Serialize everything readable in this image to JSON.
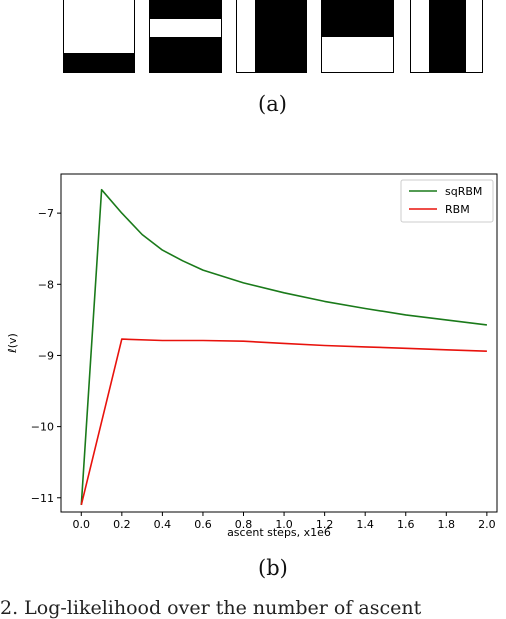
{
  "captions": {
    "a": "(a)",
    "b": "(b)"
  },
  "patterns": [
    {
      "name": "bottom-bar"
    },
    {
      "name": "top-and-middle-bars"
    },
    {
      "name": "right-block"
    },
    {
      "name": "top-block"
    },
    {
      "name": "center-vertical-bar"
    }
  ],
  "bottom_text": "2.  Log-likelihood over the number of ascent",
  "chart_data": {
    "type": "line",
    "xlabel": "ascent steps, x1e6",
    "ylabel": "ℓ(v)",
    "xlim": [
      -0.1,
      2.05
    ],
    "ylim": [
      -11.2,
      -6.45
    ],
    "xticks": [
      "0.0",
      "0.2",
      "0.4",
      "0.6",
      "0.8",
      "1.0",
      "1.2",
      "1.4",
      "1.6",
      "1.8",
      "2.0"
    ],
    "yticks": [
      "-11",
      "-10",
      "-9",
      "-8",
      "-7"
    ],
    "legend_position": "top-right",
    "series": [
      {
        "name": "sqRBM",
        "color": "#1a7a1a",
        "x": [
          0.0,
          0.1,
          0.2,
          0.3,
          0.4,
          0.5,
          0.6,
          0.8,
          1.0,
          1.2,
          1.4,
          1.6,
          1.8,
          2.0
        ],
        "y": [
          -11.1,
          -6.67,
          -7.0,
          -7.3,
          -7.52,
          -7.67,
          -7.8,
          -7.98,
          -8.12,
          -8.24,
          -8.34,
          -8.43,
          -8.5,
          -8.57
        ]
      },
      {
        "name": "RBM",
        "color": "#e8120c",
        "x": [
          0.0,
          0.2,
          0.4,
          0.6,
          0.8,
          1.0,
          1.2,
          1.4,
          1.6,
          1.8,
          2.0
        ],
        "y": [
          -11.1,
          -8.77,
          -8.79,
          -8.79,
          -8.8,
          -8.83,
          -8.86,
          -8.88,
          -8.9,
          -8.92,
          -8.94
        ]
      }
    ]
  }
}
